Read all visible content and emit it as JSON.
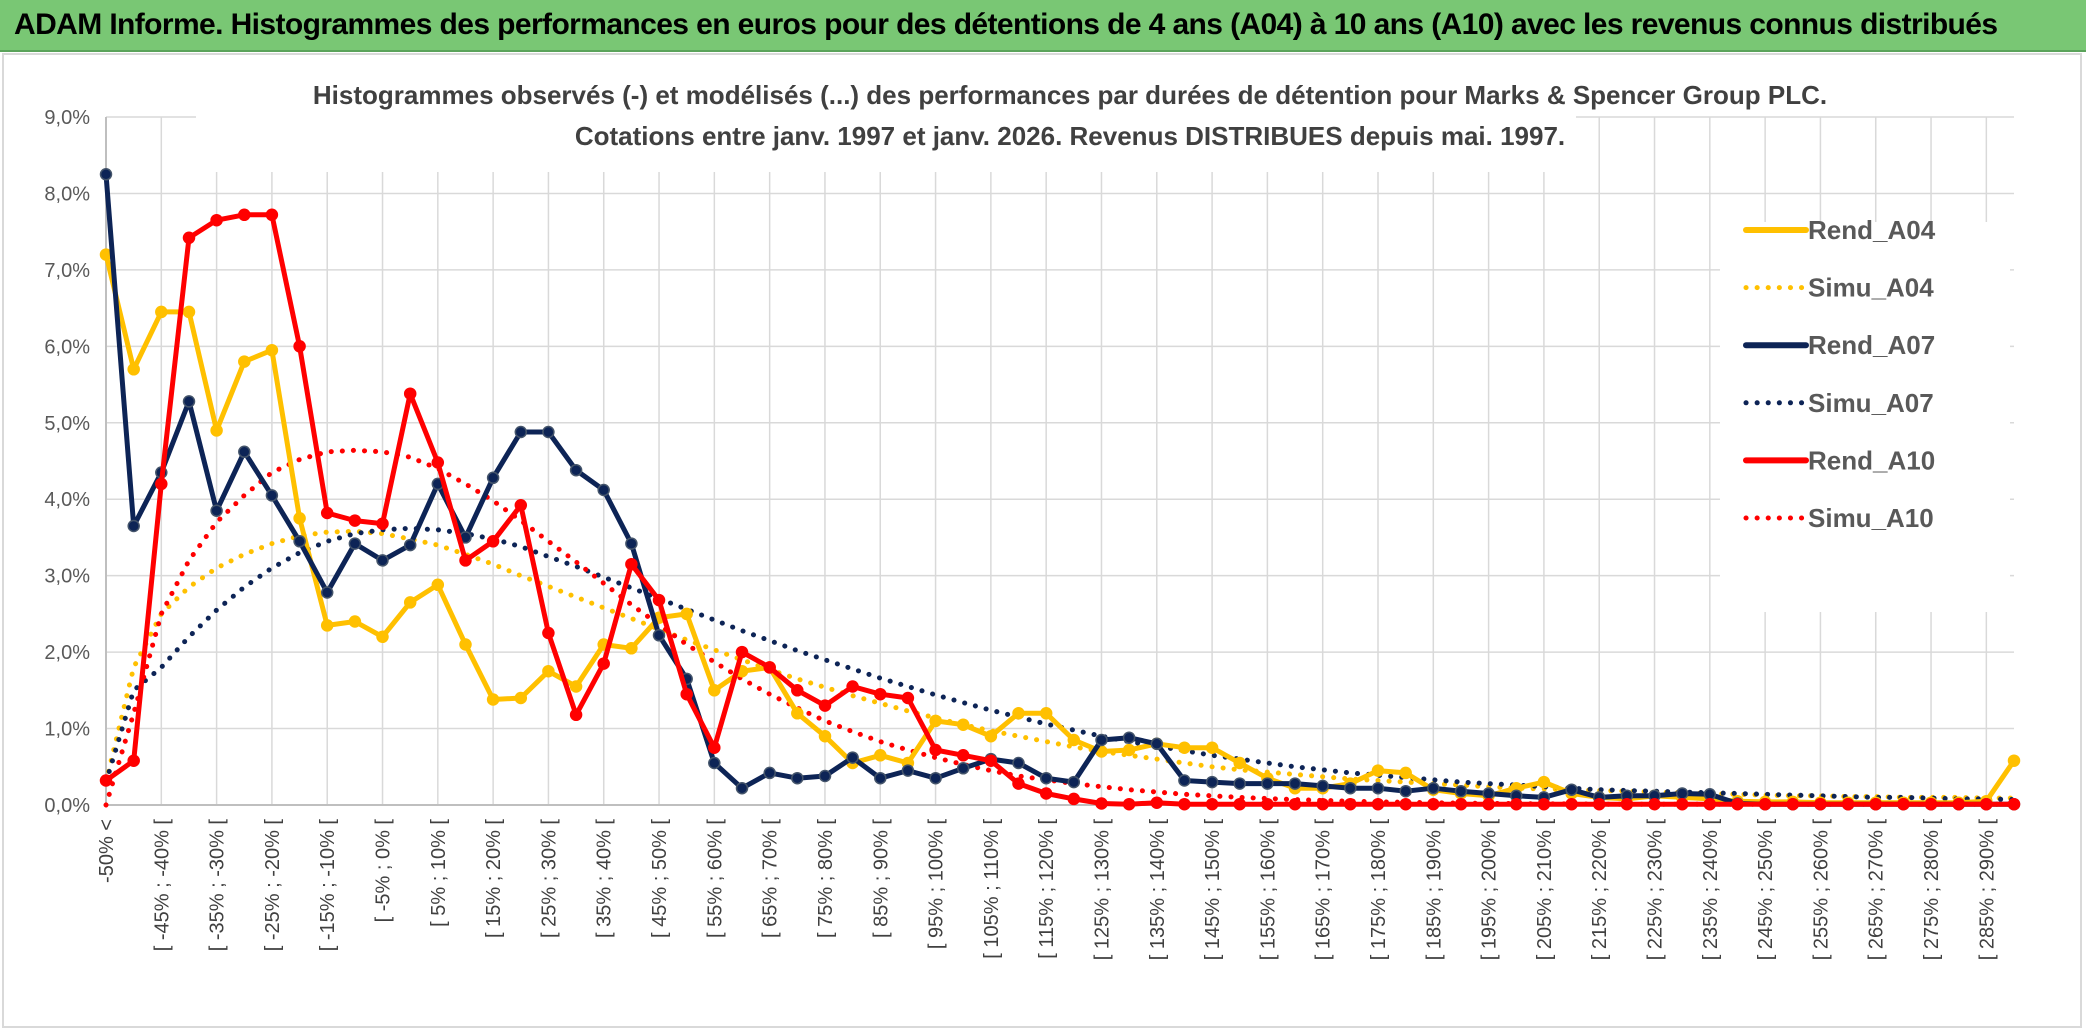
{
  "banner": {
    "title": "ADAM Informe. Histogrammes des performances en euros pour des détentions de 4 ans (A04) à 10 ans (A10) avec les revenus connus distribués"
  },
  "chart_data": {
    "type": "line",
    "title_line1": "Histogrammes observés (-) et modélisés (...) des performances par durées de détention pour Marks & Spencer Group PLC.",
    "title_line2": "Cotations entre janv. 1997 et janv. 2026. Revenus DISTRIBUES depuis mai. 1997.",
    "xlabel": "",
    "ylabel": "",
    "ylim": [
      0,
      9
    ],
    "y_ticks": [
      "0,0%",
      "1,0%",
      "2,0%",
      "3,0%",
      "4,0%",
      "5,0%",
      "6,0%",
      "7,0%",
      "8,0%",
      "9,0%"
    ],
    "x_tick_labels": [
      "-50% <",
      "[ -45% ; -40% [",
      "[ -35% ; -30% [",
      "[ -25% ; -20% [",
      "[ -15% ; -10% [",
      "[ -5% ; 0% [",
      "[ 5% ; 10% [",
      "[ 15% ; 20% [",
      "[ 25% ; 30% [",
      "[ 35% ; 40% [",
      "[ 45% ; 50% [",
      "[ 55% ; 60% [",
      "[ 65% ; 70% [",
      "[ 75% ; 80% [",
      "[ 85% ; 90% [",
      "[ 95% ; 100% [",
      "[ 105% ; 110% [",
      "[ 115% ; 120% [",
      "[ 125% ; 130% [",
      "[ 135% ; 140% [",
      "[ 145% ; 150% [",
      "[ 155% ; 160% [",
      "[ 165% ; 170% [",
      "[ 175% ; 180% [",
      "[ 185% ; 190% [",
      "[ 195% ; 200% [",
      "[ 205% ; 210% [",
      "[ 215% ; 220% [",
      "[ 225% ; 230% [",
      "[ 235% ; 240% [",
      "[ 245% ; 250% [",
      "[ 255% ; 260% [",
      "[ 265% ; 270% [",
      "[ 275% ; 280% [",
      "[ 285% ; 290% ["
    ],
    "n_points": 70,
    "grid": true,
    "legend_position": "right",
    "series": [
      {
        "name": "Rend_A04",
        "style": "solid",
        "color": "#FFC000",
        "values": [
          7.2,
          5.7,
          6.45,
          6.45,
          4.9,
          5.8,
          5.95,
          3.75,
          2.35,
          2.4,
          2.2,
          2.65,
          2.88,
          2.1,
          1.38,
          1.4,
          1.75,
          1.55,
          2.1,
          2.05,
          2.45,
          2.5,
          1.5,
          1.75,
          1.8,
          1.2,
          0.9,
          0.55,
          0.65,
          0.55,
          1.1,
          1.05,
          0.9,
          1.2,
          1.2,
          0.85,
          0.7,
          0.72,
          0.8,
          0.75,
          0.75,
          0.55,
          0.35,
          0.22,
          0.22,
          0.28,
          0.45,
          0.42,
          0.2,
          0.15,
          0.12,
          0.22,
          0.3,
          0.15,
          0.1,
          0.08,
          0.12,
          0.1,
          0.08,
          0.05,
          0.04,
          0.04,
          0.03,
          0.03,
          0.03,
          0.03,
          0.03,
          0.03,
          0.05,
          0.58
        ]
      },
      {
        "name": "Simu_A04",
        "style": "dotted",
        "color": "#FFC000",
        "values": [
          0.3,
          1.8,
          2.5,
          2.85,
          3.1,
          3.28,
          3.42,
          3.52,
          3.57,
          3.58,
          3.55,
          3.48,
          3.4,
          3.28,
          3.15,
          3.0,
          2.86,
          2.72,
          2.58,
          2.44,
          2.3,
          2.16,
          2.03,
          1.9,
          1.77,
          1.65,
          1.54,
          1.43,
          1.33,
          1.23,
          1.14,
          1.05,
          0.97,
          0.9,
          0.83,
          0.76,
          0.7,
          0.65,
          0.6,
          0.55,
          0.5,
          0.46,
          0.43,
          0.4,
          0.37,
          0.34,
          0.32,
          0.3,
          0.28,
          0.26,
          0.24,
          0.22,
          0.21,
          0.2,
          0.19,
          0.18,
          0.17,
          0.16,
          0.15,
          0.14,
          0.13,
          0.12,
          0.12,
          0.11,
          0.11,
          0.1,
          0.1,
          0.1,
          0.09,
          0.09
        ]
      },
      {
        "name": "Rend_A07",
        "style": "solid",
        "color": "#0D2456",
        "values": [
          8.25,
          3.65,
          4.35,
          5.28,
          3.85,
          4.62,
          4.05,
          3.45,
          2.78,
          3.42,
          3.2,
          3.4,
          4.2,
          3.5,
          4.28,
          4.88,
          4.88,
          4.38,
          4.12,
          3.42,
          2.22,
          1.65,
          0.55,
          0.22,
          0.42,
          0.35,
          0.38,
          0.62,
          0.35,
          0.45,
          0.35,
          0.48,
          0.6,
          0.55,
          0.35,
          0.3,
          0.85,
          0.88,
          0.8,
          0.32,
          0.3,
          0.28,
          0.28,
          0.28,
          0.25,
          0.22,
          0.22,
          0.18,
          0.22,
          0.18,
          0.15,
          0.12,
          0.1,
          0.2,
          0.1,
          0.12,
          0.12,
          0.15,
          0.14,
          0.02,
          0.01,
          0.01,
          0.01,
          0.01,
          0.01,
          0.01,
          0.01,
          0.01,
          0.01,
          0.01
        ]
      },
      {
        "name": "Simu_A07",
        "style": "dotted",
        "color": "#0D2456",
        "values": [
          0.3,
          1.5,
          1.8,
          2.2,
          2.55,
          2.85,
          3.1,
          3.3,
          3.45,
          3.55,
          3.6,
          3.62,
          3.6,
          3.55,
          3.48,
          3.38,
          3.25,
          3.12,
          2.98,
          2.84,
          2.7,
          2.56,
          2.42,
          2.28,
          2.15,
          2.02,
          1.9,
          1.78,
          1.66,
          1.55,
          1.44,
          1.34,
          1.24,
          1.15,
          1.06,
          0.98,
          0.9,
          0.83,
          0.77,
          0.71,
          0.65,
          0.6,
          0.55,
          0.5,
          0.46,
          0.42,
          0.39,
          0.36,
          0.33,
          0.3,
          0.28,
          0.26,
          0.24,
          0.22,
          0.2,
          0.19,
          0.18,
          0.17,
          0.16,
          0.15,
          0.14,
          0.13,
          0.12,
          0.11,
          0.1,
          0.1,
          0.09,
          0.08,
          0.08,
          0.07
        ]
      },
      {
        "name": "Rend_A10",
        "style": "solid",
        "color": "#FF0000",
        "values": [
          0.32,
          0.58,
          4.2,
          7.42,
          7.65,
          7.72,
          7.72,
          6.0,
          3.82,
          3.72,
          3.68,
          5.38,
          4.48,
          3.2,
          3.45,
          3.92,
          2.25,
          1.18,
          1.85,
          3.15,
          2.68,
          1.45,
          0.75,
          2.0,
          1.8,
          1.5,
          1.3,
          1.55,
          1.45,
          1.4,
          0.72,
          0.65,
          0.58,
          0.28,
          0.15,
          0.08,
          0.02,
          0.01,
          0.03,
          0.01,
          0.01,
          0.01,
          0.01,
          0.01,
          0.01,
          0.01,
          0.01,
          0.01,
          0.01,
          0.01,
          0.01,
          0.01,
          0.01,
          0.01,
          0.01,
          0.01,
          0.01,
          0.01,
          0.01,
          0.01,
          0.01,
          0.01,
          0.01,
          0.01,
          0.01,
          0.01,
          0.01,
          0.01,
          0.01,
          0.01
        ]
      },
      {
        "name": "Simu_A10",
        "style": "dotted",
        "color": "#FF0000",
        "values": [
          0.0,
          1.2,
          2.5,
          3.2,
          3.7,
          4.05,
          4.35,
          4.52,
          4.62,
          4.64,
          4.62,
          4.55,
          4.4,
          4.2,
          3.98,
          3.72,
          3.45,
          3.18,
          2.9,
          2.62,
          2.36,
          2.1,
          1.87,
          1.65,
          1.45,
          1.27,
          1.1,
          0.96,
          0.83,
          0.72,
          0.62,
          0.53,
          0.45,
          0.38,
          0.33,
          0.28,
          0.24,
          0.2,
          0.17,
          0.14,
          0.12,
          0.1,
          0.085,
          0.07,
          0.06,
          0.05,
          0.04,
          0.035,
          0.03,
          0.025,
          0.02,
          0.02,
          0.015,
          0.015,
          0.01,
          0.01,
          0.01,
          0.01,
          0.01,
          0.01,
          0.01,
          0.01,
          0.01,
          0.01,
          0.01,
          0.01,
          0.01,
          0.01,
          0.01,
          0.01
        ]
      }
    ]
  }
}
